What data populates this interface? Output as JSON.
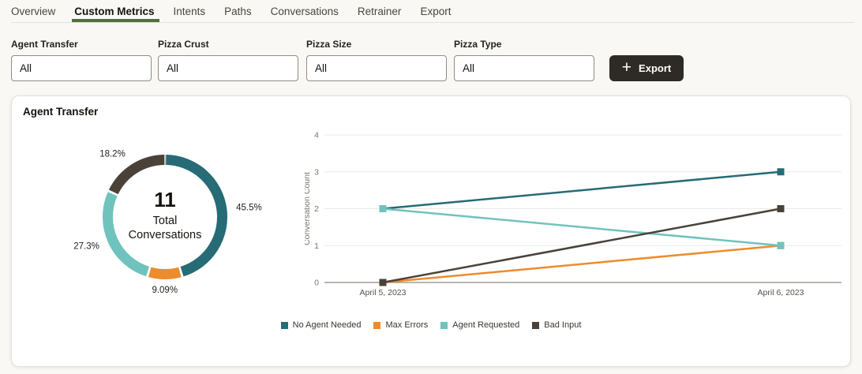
{
  "tabs": {
    "items": [
      {
        "label": "Overview",
        "active": false
      },
      {
        "label": "Custom Metrics",
        "active": true
      },
      {
        "label": "Intents",
        "active": false
      },
      {
        "label": "Paths",
        "active": false
      },
      {
        "label": "Conversations",
        "active": false
      },
      {
        "label": "Retrainer",
        "active": false
      },
      {
        "label": "Export",
        "active": false
      }
    ]
  },
  "filters": [
    {
      "label": "Agent Transfer",
      "value": "All"
    },
    {
      "label": "Pizza Crust",
      "value": "All"
    },
    {
      "label": "Pizza Size",
      "value": "All"
    },
    {
      "label": "Pizza Type",
      "value": "All"
    }
  ],
  "export_button": {
    "label": "Export",
    "icon": "plus-icon"
  },
  "card": {
    "title": "Agent Transfer"
  },
  "colors": {
    "accent_underline": "#4f7040",
    "export_button_bg": "#2e2b26",
    "page_bg": "#faf8f5",
    "grid_line": "#eceae6",
    "axis_line": "#8f8b84"
  },
  "chart_data": [
    {
      "type": "pie",
      "subtype": "donut",
      "title": "Agent Transfer",
      "center_value": "11",
      "center_label": "Total Conversations",
      "slices": [
        {
          "label": "No Agent Needed",
          "value": 5,
          "percent": 45.5,
          "percent_label": "45.5%",
          "color": "#266b76"
        },
        {
          "label": "Max Errors",
          "value": 1,
          "percent": 9.09,
          "percent_label": "9.09%",
          "color": "#ed8b2d"
        },
        {
          "label": "Agent Requested",
          "value": 3,
          "percent": 27.3,
          "percent_label": "27.3%",
          "color": "#70c3bc"
        },
        {
          "label": "Bad Input",
          "value": 2,
          "percent": 18.2,
          "percent_label": "18.2%",
          "color": "#4a4139"
        }
      ]
    },
    {
      "type": "line",
      "x": [
        "April 5, 2023",
        "April 6, 2023"
      ],
      "ylabel": "Conversation Count",
      "ylim": [
        0,
        4
      ],
      "yticks": [
        0,
        1,
        2,
        3,
        4
      ],
      "grid": true,
      "legend_position": "bottom",
      "series": [
        {
          "name": "No Agent Needed",
          "values": [
            2,
            3
          ],
          "color": "#266b76"
        },
        {
          "name": "Max Errors",
          "values": [
            0,
            1
          ],
          "color": "#ed8b2d"
        },
        {
          "name": "Agent Requested",
          "values": [
            2,
            1
          ],
          "color": "#70c3bc"
        },
        {
          "name": "Bad Input",
          "values": [
            0,
            2
          ],
          "color": "#4a4139"
        }
      ]
    }
  ]
}
